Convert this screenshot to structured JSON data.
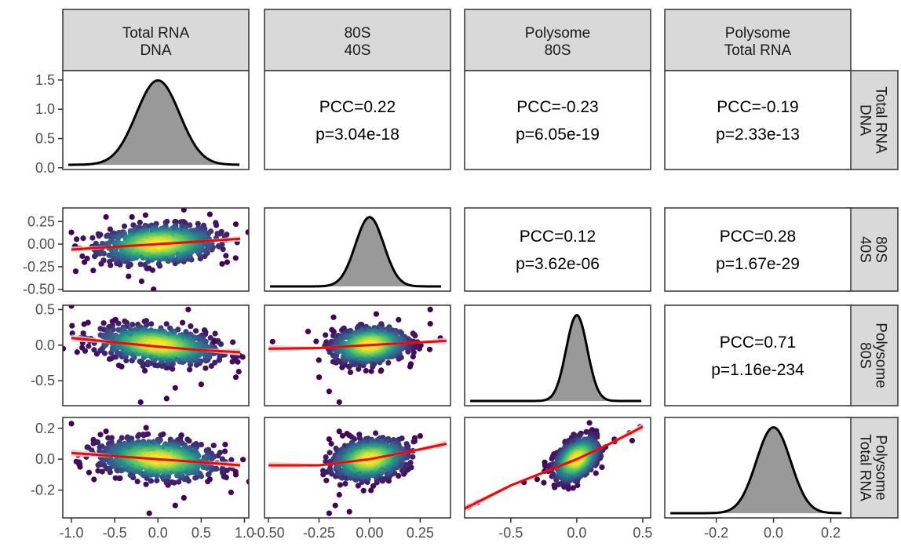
{
  "chart_data": {
    "type": "scatter-matrix",
    "variables": [
      {
        "id": "v1",
        "label_lines": [
          "Total RNA",
          "DNA"
        ]
      },
      {
        "id": "v2",
        "label_lines": [
          "80S",
          "40S"
        ]
      },
      {
        "id": "v3",
        "label_lines": [
          "Polysome",
          "80S"
        ]
      },
      {
        "id": "v4",
        "label_lines": [
          "Polysome",
          "Total RNA"
        ]
      }
    ],
    "x_axes": [
      {
        "range": [
          -1.1,
          1.05
        ],
        "ticks": [
          -1.0,
          -0.5,
          0.0,
          0.5,
          1.0
        ],
        "tick_labels": [
          "-1.0",
          "-0.5",
          "0.0",
          "0.5",
          "1.0"
        ]
      },
      {
        "range": [
          -0.52,
          0.4
        ],
        "ticks": [
          -0.5,
          -0.25,
          0.0,
          0.25
        ],
        "tick_labels": [
          "-0.50",
          "-0.25",
          "0.00",
          "0.25"
        ]
      },
      {
        "range": [
          -0.85,
          0.56
        ],
        "ticks": [
          -0.5,
          0.0,
          0.5
        ],
        "tick_labels": [
          "-0.5",
          "0.0",
          "0.5"
        ]
      },
      {
        "range": [
          -0.38,
          0.27
        ],
        "ticks": [
          -0.2,
          0.0,
          0.2
        ],
        "tick_labels": [
          "-0.2",
          "0.0",
          "0.2"
        ]
      }
    ],
    "y_axes": [
      {
        "range": [
          -0.03,
          1.66
        ],
        "ticks": [
          0.0,
          0.5,
          1.0,
          1.5
        ],
        "tick_labels": [
          "0.0",
          "0.5",
          "1.0",
          "1.5"
        ]
      },
      {
        "range": [
          -0.52,
          0.4
        ],
        "ticks": [
          -0.5,
          -0.25,
          0.0,
          0.25
        ],
        "tick_labels": [
          "-0.50",
          "-0.25",
          "0.00",
          "0.25"
        ]
      },
      {
        "range": [
          -0.85,
          0.56
        ],
        "ticks": [
          -0.5,
          0.0,
          0.5
        ],
        "tick_labels": [
          "-0.5",
          "0.0",
          "0.5"
        ]
      },
      {
        "range": [
          -0.38,
          0.27
        ],
        "ticks": [
          -0.2,
          0.0,
          0.2
        ],
        "tick_labels": [
          "-0.2",
          "0.0",
          "0.2"
        ]
      }
    ],
    "diagonal": [
      {
        "variable": "v1",
        "type": "density",
        "center": 0.0,
        "sd": 0.25
      },
      {
        "variable": "v2",
        "type": "density",
        "center": 0.0,
        "sd": 0.07
      },
      {
        "variable": "v3",
        "type": "density",
        "center": 0.0,
        "sd": 0.08
      },
      {
        "variable": "v4",
        "type": "density",
        "center": 0.0,
        "sd": 0.06
      }
    ],
    "correlations": [
      {
        "row": 0,
        "col": 1,
        "pcc": "PCC=0.22",
        "p": "p=3.04e-18"
      },
      {
        "row": 0,
        "col": 2,
        "pcc": "PCC=-0.23",
        "p": "p=6.05e-19"
      },
      {
        "row": 0,
        "col": 3,
        "pcc": "PCC=-0.19",
        "p": "p=2.33e-13"
      },
      {
        "row": 1,
        "col": 2,
        "pcc": "PCC=0.12",
        "p": "p=3.62e-06"
      },
      {
        "row": 1,
        "col": 3,
        "pcc": "PCC=0.28",
        "p": "p=1.67e-29"
      },
      {
        "row": 2,
        "col": 3,
        "pcc": "PCC=0.71",
        "p": "p=1.16e-234"
      }
    ],
    "scatter_panels": [
      {
        "row": 1,
        "col": 0,
        "spread_x": 0.33,
        "spread_y": 0.1,
        "slope": 0.05,
        "fit": [
          [
            -1.0,
            -0.06
          ],
          [
            -0.5,
            -0.03
          ],
          [
            0.0,
            0.0
          ],
          [
            0.5,
            0.03
          ],
          [
            0.95,
            0.06
          ]
        ],
        "outliers": [
          [
            -1.0,
            0.13
          ],
          [
            -0.95,
            -0.3
          ],
          [
            -0.9,
            -0.05
          ],
          [
            -0.85,
            -0.2
          ],
          [
            -0.6,
            0.3
          ],
          [
            0.3,
            0.38
          ],
          [
            0.9,
            0.22
          ],
          [
            0.8,
            -0.2
          ],
          [
            -0.05,
            -0.5
          ],
          [
            0.6,
            0.33
          ],
          [
            -0.3,
            0.3
          ]
        ]
      },
      {
        "row": 2,
        "col": 0,
        "spread_x": 0.33,
        "spread_y": 0.12,
        "slope": -0.12,
        "fit": [
          [
            -1.0,
            0.1
          ],
          [
            -0.5,
            0.04
          ],
          [
            0.0,
            -0.02
          ],
          [
            0.5,
            -0.07
          ],
          [
            0.95,
            -0.1
          ]
        ],
        "outliers": [
          [
            -1.0,
            0.55
          ],
          [
            -0.9,
            0.1
          ],
          [
            -0.2,
            -0.8
          ],
          [
            0.1,
            -0.75
          ],
          [
            0.2,
            -0.6
          ],
          [
            0.5,
            -0.55
          ],
          [
            0.9,
            -0.45
          ],
          [
            0.65,
            0.05
          ],
          [
            -0.5,
            0.35
          ],
          [
            0.35,
            0.5
          ]
        ]
      },
      {
        "row": 2,
        "col": 1,
        "spread_x": 0.09,
        "spread_y": 0.12,
        "slope": 0.2,
        "fit": [
          [
            -0.5,
            -0.05
          ],
          [
            -0.25,
            -0.04
          ],
          [
            0.0,
            0.0
          ],
          [
            0.25,
            0.04
          ],
          [
            0.38,
            0.06
          ]
        ],
        "outliers": [
          [
            -0.48,
            0.05
          ],
          [
            -0.2,
            -0.65
          ],
          [
            -0.15,
            -0.8
          ],
          [
            -0.25,
            -0.45
          ],
          [
            0.3,
            0.5
          ],
          [
            0.3,
            0.3
          ],
          [
            0.2,
            -0.3
          ],
          [
            0.35,
            0.1
          ]
        ]
      },
      {
        "row": 3,
        "col": 0,
        "spread_x": 0.33,
        "spread_y": 0.06,
        "slope": -0.04,
        "fit": [
          [
            -1.0,
            0.04
          ],
          [
            -0.5,
            0.02
          ],
          [
            0.0,
            0.0
          ],
          [
            0.5,
            -0.02
          ],
          [
            0.95,
            -0.04
          ]
        ],
        "outliers": [
          [
            -1.0,
            0.23
          ],
          [
            -0.9,
            -0.05
          ],
          [
            -0.1,
            -0.35
          ],
          [
            0.2,
            -0.3
          ],
          [
            0.3,
            -0.25
          ],
          [
            -0.6,
            0.18
          ],
          [
            0.6,
            -0.13
          ],
          [
            0.9,
            -0.1
          ]
        ]
      },
      {
        "row": 3,
        "col": 1,
        "spread_x": 0.09,
        "spread_y": 0.06,
        "slope": 0.15,
        "fit": [
          [
            -0.5,
            -0.04
          ],
          [
            -0.25,
            -0.04
          ],
          [
            0.0,
            0.0
          ],
          [
            0.2,
            0.05
          ],
          [
            0.38,
            0.1
          ]
        ],
        "outliers": [
          [
            -0.2,
            -0.35
          ],
          [
            -0.17,
            -0.3
          ],
          [
            -0.15,
            -0.23
          ],
          [
            -0.2,
            0.13
          ],
          [
            -0.15,
            0.18
          ],
          [
            0.25,
            0.15
          ],
          [
            -0.1,
            -0.34
          ]
        ]
      },
      {
        "row": 3,
        "col": 2,
        "spread_x": 0.08,
        "spread_y": 0.06,
        "slope": 0.38,
        "fit": [
          [
            -0.85,
            -0.32
          ],
          [
            -0.5,
            -0.17
          ],
          [
            0.0,
            0.0
          ],
          [
            0.25,
            0.1
          ],
          [
            0.5,
            0.21
          ]
        ],
        "outliers": [
          [
            -0.82,
            -0.31
          ],
          [
            -0.75,
            -0.28
          ],
          [
            -0.4,
            -0.15
          ],
          [
            -0.3,
            -0.13
          ],
          [
            0.4,
            0.17
          ],
          [
            0.48,
            0.21
          ],
          [
            0.42,
            0.12
          ]
        ]
      }
    ],
    "colors": {
      "panel_border": "#333333",
      "strip_fill": "#d9d9d9",
      "density_fill": "#999999",
      "fit_line": "#ff0000",
      "ci_band": "#d3d3d3",
      "viridis": [
        "#440154",
        "#3b528b",
        "#21918c",
        "#5ec962",
        "#fde725"
      ]
    }
  }
}
